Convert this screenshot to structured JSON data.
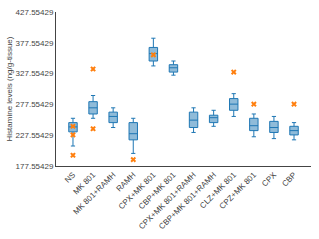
{
  "chart_data": {
    "type": "box",
    "ylabel": "Histamine levels (ng/g-tissue)",
    "categories": [
      "NS",
      "MK 801",
      "MK 801+RAMH",
      "RAMH",
      "CPX+MK 801",
      "CBP+MK 801",
      "CPX+MK 801+RAMH",
      "CBP+MK 801+RAMH",
      "CLZ+MK 801",
      "CPZ+MK 801",
      "CPX",
      "CBP"
    ],
    "boxes": [
      {
        "q1": 233,
        "median": 241,
        "q3": 248,
        "whisker_low": 210,
        "whisker_high": 255
      },
      {
        "q1": 262,
        "median": 272,
        "q3": 282,
        "whisker_low": 255,
        "whisker_high": 292
      },
      {
        "q1": 248,
        "median": 258,
        "q3": 265,
        "whisker_low": 240,
        "whisker_high": 272
      },
      {
        "q1": 220,
        "median": 230,
        "q3": 248,
        "whisker_low": 198,
        "whisker_high": 255
      },
      {
        "q1": 348,
        "median": 360,
        "q3": 370,
        "whisker_low": 340,
        "whisker_high": 385
      },
      {
        "q1": 330,
        "median": 337,
        "q3": 342,
        "whisker_low": 325,
        "whisker_high": 348
      },
      {
        "q1": 240,
        "median": 252,
        "q3": 265,
        "whisker_low": 232,
        "whisker_high": 272
      },
      {
        "q1": 248,
        "median": 256,
        "q3": 260,
        "whisker_low": 242,
        "whisker_high": 268
      },
      {
        "q1": 268,
        "median": 278,
        "q3": 287,
        "whisker_low": 258,
        "whisker_high": 295
      },
      {
        "q1": 235,
        "median": 243,
        "q3": 255,
        "whisker_low": 225,
        "whisker_high": 262
      },
      {
        "q1": 232,
        "median": 240,
        "q3": 250,
        "whisker_low": 222,
        "whisker_high": 258
      },
      {
        "q1": 228,
        "median": 235,
        "q3": 242,
        "whisker_low": 220,
        "whisker_high": 248
      }
    ],
    "outliers": [
      [
        228,
        195,
        242
      ],
      [
        238,
        335
      ],
      [],
      [
        188
      ],
      [
        358
      ],
      [],
      [],
      [],
      [
        330
      ],
      [
        278
      ],
      [],
      [
        278
      ]
    ],
    "ylim": [
      177.55429,
      427.55429
    ],
    "yticks": [
      177.55429,
      227.55429,
      277.55429,
      327.55429,
      377.55429,
      427.55429
    ],
    "grid": false
  }
}
